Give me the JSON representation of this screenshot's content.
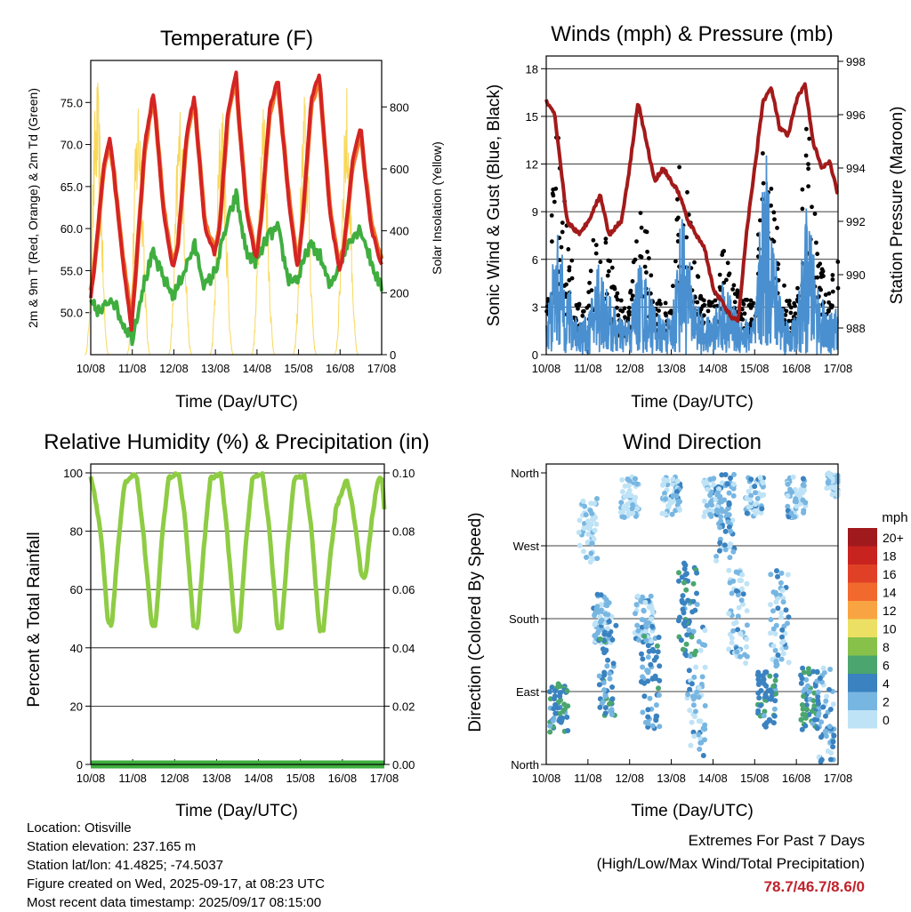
{
  "panels": {
    "temperature": {
      "title": "Temperature (F)",
      "ylabel_left": "2m & 9m T (Red, Orange) & 2m Td (Green)",
      "ylabel_right": "Solar Insolation (Yellow)",
      "xlabel": "Time (Day/UTC)"
    },
    "winds": {
      "title": "Winds (mph) & Pressure (mb)",
      "ylabel_left": "Sonic Wind & Gust (Blue, Black)",
      "ylabel_right": "Station Pressure (Maroon)",
      "xlabel": "Time (Day/UTC)"
    },
    "humidity": {
      "title": "Relative Humidity (%) & Precipitation (in)",
      "ylabel_left": "Percent & Total Rainfall",
      "xlabel": "Time (Day/UTC)"
    },
    "direction": {
      "title": "Wind Direction",
      "ylabel_left": "Direction (Colored By Speed)",
      "xlabel": "Time (Day/UTC)",
      "colorbar_unit": "mph"
    }
  },
  "x_ticks": [
    "10/08",
    "11/08",
    "12/08",
    "13/08",
    "14/08",
    "15/08",
    "16/08",
    "17/08"
  ],
  "colors": {
    "temp_2m": "#d42424",
    "temp_9m": "#f07a28",
    "dewpoint": "#3fae3f",
    "insolation": "#f8d85a",
    "wind": "#4a90d0",
    "gust": "#000000",
    "pressure": "#a31a1a",
    "rh": "#8ecc44",
    "precip": "#3fae3f"
  },
  "colorbar": [
    {
      "label": "20+",
      "color": "#a0191d"
    },
    {
      "label": "18",
      "color": "#c8231f"
    },
    {
      "label": "16",
      "color": "#e04126"
    },
    {
      "label": "14",
      "color": "#f2692e"
    },
    {
      "label": "12",
      "color": "#f9a442"
    },
    {
      "label": "10",
      "color": "#ece064"
    },
    {
      "label": "8",
      "color": "#88c14a"
    },
    {
      "label": "6",
      "color": "#4aa66e"
    },
    {
      "label": "4",
      "color": "#3a82c0"
    },
    {
      "label": "2",
      "color": "#78b6e2"
    },
    {
      "label": "0",
      "color": "#bfe3f6"
    }
  ],
  "info": {
    "location": "Location: Otisville",
    "elevation": "Station elevation: 237.165 m",
    "latlon": "Station lat/lon: 41.4825; -74.5037",
    "created": "Figure created on Wed, 2025-09-17, at 08:23 UTC",
    "recent": "Most recent data timestamp: 2025/09/17 08:15:00"
  },
  "extremes": {
    "title": "Extremes For Past 7 Days",
    "subtitle": "(High/Low/Max Wind/Total Precipitation)",
    "values": "78.7/46.7/8.6/0"
  },
  "chart_data": [
    {
      "type": "line",
      "title": "Temperature (F)",
      "xlabel": "Time (Day/UTC)",
      "x_start": "2025-09-10",
      "x_end": "2025-09-17",
      "ylim_left": [
        45,
        80
      ],
      "yticks_left": [
        50.0,
        55.0,
        60.0,
        65.0,
        70.0,
        75.0
      ],
      "ylim_right": [
        0,
        950
      ],
      "yticks_right": [
        0,
        200,
        400,
        600,
        800
      ],
      "series": [
        {
          "name": "2m T",
          "color": "#d42424",
          "x": [
            0,
            0.1,
            0.3,
            0.45,
            0.55,
            0.75,
            0.98,
            1.1,
            1.3,
            1.5,
            1.55,
            1.75,
            1.98,
            2.1,
            2.3,
            2.5,
            2.55,
            2.75,
            2.98,
            3.1,
            3.3,
            3.5,
            3.55,
            3.75,
            3.98,
            4.1,
            4.3,
            4.5,
            4.55,
            4.75,
            4.98,
            5.1,
            5.3,
            5.5,
            5.55,
            5.75,
            5.98,
            6.1,
            6.3,
            6.5,
            6.55,
            6.75,
            6.98
          ],
          "y": [
            52,
            56,
            67,
            71,
            67,
            57,
            48,
            56,
            70,
            76,
            74,
            62,
            55,
            58,
            71,
            76,
            72,
            60,
            57,
            60,
            74,
            78.7,
            74,
            62,
            56,
            61,
            74,
            78,
            75,
            64,
            55,
            61,
            75,
            78.5,
            75,
            62,
            55,
            58,
            68,
            72,
            69,
            60,
            56
          ]
        },
        {
          "name": "9m T",
          "color": "#f07a28",
          "x": [
            0,
            0.1,
            0.3,
            0.45,
            0.55,
            0.75,
            0.98,
            1.1,
            1.3,
            1.5,
            1.55,
            1.75,
            1.98,
            2.1,
            2.3,
            2.5,
            2.55,
            2.75,
            2.98,
            3.1,
            3.3,
            3.5,
            3.55,
            3.75,
            3.98,
            4.1,
            4.3,
            4.5,
            4.55,
            4.75,
            4.98,
            5.1,
            5.3,
            5.5,
            5.55,
            5.75,
            5.98,
            6.1,
            6.3,
            6.5,
            6.55,
            6.75,
            6.98
          ],
          "y": [
            52.5,
            56,
            66.5,
            70.5,
            67,
            57.5,
            49,
            56,
            69.5,
            75.5,
            74,
            62.5,
            55.5,
            58,
            70.5,
            75.5,
            72,
            60.5,
            57.5,
            60,
            73.5,
            78,
            74,
            62.5,
            56.5,
            61,
            73.5,
            77.5,
            75,
            64.5,
            55.5,
            61,
            74.5,
            78,
            75,
            62.5,
            55.5,
            58,
            67.5,
            71.5,
            69,
            60.5,
            56.5
          ]
        },
        {
          "name": "2m Td",
          "color": "#3fae3f",
          "x": [
            0,
            0.25,
            0.5,
            0.75,
            1.0,
            1.25,
            1.5,
            1.75,
            2.0,
            2.25,
            2.5,
            2.75,
            3.0,
            3.25,
            3.5,
            3.75,
            4.0,
            4.25,
            4.5,
            4.75,
            5.0,
            5.25,
            5.5,
            5.75,
            6.0,
            6.25,
            6.5,
            6.75,
            6.98
          ],
          "y": [
            51,
            50,
            52,
            49,
            47,
            53,
            57,
            54,
            52,
            55,
            58,
            53,
            55,
            60,
            64,
            57,
            56,
            59,
            60,
            54,
            54,
            58,
            57,
            53,
            56,
            59,
            60,
            56,
            53
          ]
        },
        {
          "name": "Solar Insolation",
          "color": "#f8d85a",
          "axis": "right",
          "peak_days": [
            0.15,
            1.15,
            2.15,
            3.15,
            4.15,
            5.15,
            6.15
          ],
          "peak_values": [
            900,
            880,
            840,
            850,
            860,
            860,
            880
          ]
        }
      ]
    },
    {
      "type": "line",
      "title": "Winds (mph) & Pressure (mb)",
      "xlabel": "Time (Day/UTC)",
      "x_start": "2025-09-10",
      "x_end": "2025-09-17",
      "ylim_left": [
        0,
        18.8
      ],
      "yticks_left": [
        0,
        3,
        6,
        9,
        12,
        15,
        18
      ],
      "ylim_right": [
        987,
        998.2
      ],
      "yticks_right": [
        988,
        990,
        992,
        994,
        996,
        998
      ],
      "series": [
        {
          "name": "Sonic Wind",
          "color": "#4a90d0",
          "x": [
            0,
            0.25,
            0.5,
            0.75,
            1.0,
            1.25,
            1.5,
            1.75,
            2.0,
            2.25,
            2.5,
            2.75,
            3.0,
            3.25,
            3.5,
            3.75,
            4.0,
            4.25,
            4.5,
            4.75,
            5.0,
            5.25,
            5.5,
            5.75,
            6.0,
            6.25,
            6.5,
            6.75,
            7.0
          ],
          "y": [
            1.5,
            5,
            3,
            1.5,
            1.5,
            4,
            2.5,
            1.5,
            1.5,
            4,
            2.5,
            1.5,
            1.5,
            6,
            3,
            1.5,
            1.5,
            3,
            2,
            1.5,
            1.5,
            8.6,
            4,
            1.5,
            1.5,
            6,
            3,
            1.5,
            2
          ]
        },
        {
          "name": "Gust",
          "color": "#000000",
          "x": [
            0,
            0.25,
            0.5,
            0.75,
            1.0,
            1.25,
            1.5,
            1.75,
            2.0,
            2.25,
            2.5,
            2.75,
            3.0,
            3.25,
            3.5,
            3.75,
            4.0,
            4.25,
            4.5,
            4.75,
            5.0,
            5.25,
            5.5,
            5.75,
            6.0,
            6.25,
            6.5,
            6.75,
            7.0
          ],
          "y": [
            3,
            13,
            7,
            3,
            3,
            10,
            6,
            3,
            3,
            10,
            5,
            3,
            3,
            14,
            7,
            3,
            3,
            6,
            4,
            3,
            3,
            14,
            8,
            3,
            3,
            14,
            7,
            3,
            6
          ]
        },
        {
          "name": "Station Pressure",
          "color": "#a31a1a",
          "axis": "right",
          "x": [
            0,
            0.2,
            0.35,
            0.5,
            0.8,
            1.0,
            1.3,
            1.5,
            1.8,
            2.0,
            2.2,
            2.4,
            2.6,
            2.8,
            3.0,
            3.2,
            3.4,
            3.6,
            3.8,
            4.0,
            4.2,
            4.4,
            4.6,
            4.8,
            5.0,
            5.2,
            5.4,
            5.6,
            5.8,
            6.0,
            6.2,
            6.4,
            6.6,
            6.8,
            7.0
          ],
          "y": [
            996.5,
            996,
            994,
            992,
            991.5,
            992,
            993,
            991.5,
            992,
            994,
            996.5,
            995,
            993.5,
            994,
            993.5,
            993,
            992,
            991.5,
            991,
            989.5,
            989,
            988.5,
            988.2,
            991.5,
            994,
            996.5,
            997,
            995.5,
            995.2,
            996.5,
            997.2,
            995,
            994,
            994.2,
            993
          ]
        }
      ]
    },
    {
      "type": "line",
      "title": "Relative Humidity (%) & Precipitation (in)",
      "xlabel": "Time (Day/UTC)",
      "x_start": "2025-09-10",
      "x_end": "2025-09-17",
      "ylim_left": [
        0,
        100
      ],
      "yticks_left": [
        0,
        20,
        40,
        60,
        80,
        100
      ],
      "ylim_right": [
        0,
        0.1
      ],
      "yticks_right": [
        "0.00",
        "0.02",
        "0.04",
        "0.06",
        "0.08",
        "0.10"
      ],
      "series": [
        {
          "name": "Relative Humidity",
          "color": "#8ecc44",
          "x": [
            0,
            0.1,
            0.25,
            0.4,
            0.5,
            0.65,
            0.8,
            0.95,
            1.1,
            1.25,
            1.45,
            1.55,
            1.7,
            1.85,
            2.1,
            2.25,
            2.45,
            2.55,
            2.7,
            2.85,
            3.1,
            3.25,
            3.45,
            3.55,
            3.7,
            3.85,
            4.1,
            4.25,
            4.45,
            4.55,
            4.7,
            4.85,
            5.1,
            5.25,
            5.45,
            5.55,
            5.7,
            5.85,
            6.1,
            6.25,
            6.45,
            6.55,
            6.7,
            6.85,
            6.95,
            7.0
          ],
          "y": [
            99,
            92,
            78,
            50,
            47,
            75,
            96,
            99,
            99,
            80,
            48,
            48,
            78,
            98,
            100,
            84,
            48,
            47,
            75,
            98,
            100,
            80,
            45,
            46,
            76,
            98,
            100,
            82,
            47,
            47,
            75,
            98,
            99,
            82,
            46,
            46,
            70,
            88,
            98,
            88,
            65,
            64,
            84,
            98,
            98,
            87
          ]
        },
        {
          "name": "Total Precipitation",
          "color": "#3fae3f",
          "axis": "right",
          "x": [
            0,
            7.0
          ],
          "y": [
            0,
            0
          ]
        }
      ]
    },
    {
      "type": "scatter",
      "title": "Wind Direction",
      "xlabel": "Time (Day/UTC)",
      "x_start": "2025-09-10",
      "x_end": "2025-09-17",
      "yticks": [
        "North",
        "East",
        "South",
        "West",
        "North"
      ],
      "ylim_deg": [
        0,
        360
      ],
      "colorbar_label": "mph",
      "colorbar_ticks": [
        "0",
        "2",
        "4",
        "6",
        "8",
        "10",
        "12",
        "14",
        "16",
        "18",
        "20+"
      ],
      "clusters": [
        {
          "x": 0.3,
          "deg": 70,
          "spread": 30,
          "speed": 5
        },
        {
          "x": 1.0,
          "deg": 290,
          "spread": 40,
          "speed": 1
        },
        {
          "x": 1.35,
          "deg": 180,
          "spread": 30,
          "speed": 2
        },
        {
          "x": 1.45,
          "deg": 120,
          "spread": 60,
          "speed": 4
        },
        {
          "x": 2.0,
          "deg": 330,
          "spread": 25,
          "speed": 1
        },
        {
          "x": 2.35,
          "deg": 180,
          "spread": 30,
          "speed": 2
        },
        {
          "x": 2.5,
          "deg": 100,
          "spread": 60,
          "speed": 4
        },
        {
          "x": 3.0,
          "deg": 330,
          "spread": 25,
          "speed": 2
        },
        {
          "x": 3.4,
          "deg": 190,
          "spread": 60,
          "speed": 5
        },
        {
          "x": 3.6,
          "deg": 90,
          "spread": 80,
          "speed": 2
        },
        {
          "x": 4.0,
          "deg": 330,
          "spread": 25,
          "speed": 2
        },
        {
          "x": 4.3,
          "deg": 300,
          "spread": 60,
          "speed": 3
        },
        {
          "x": 4.6,
          "deg": 180,
          "spread": 60,
          "speed": 2
        },
        {
          "x": 5.0,
          "deg": 330,
          "spread": 25,
          "speed": 2
        },
        {
          "x": 5.3,
          "deg": 80,
          "spread": 35,
          "speed": 5
        },
        {
          "x": 5.6,
          "deg": 180,
          "spread": 60,
          "speed": 2
        },
        {
          "x": 6.0,
          "deg": 330,
          "spread": 25,
          "speed": 2
        },
        {
          "x": 6.3,
          "deg": 80,
          "spread": 40,
          "speed": 5
        },
        {
          "x": 6.7,
          "deg": 60,
          "spread": 60,
          "speed": 3
        },
        {
          "x": 6.95,
          "deg": 345,
          "spread": 15,
          "speed": 1
        }
      ]
    }
  ]
}
